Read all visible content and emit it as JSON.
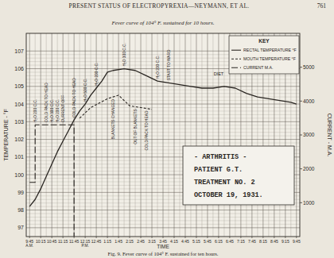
{
  "page": {
    "running_head": "PRESENT STATUS OF ELECTROPYREXIA—NEYMANN, ET AL.",
    "page_number": "761"
  },
  "chart_data": {
    "type": "line",
    "title": "Fever curve of 104° F. sustained for 10 hours.",
    "x_label": "TIME",
    "y_label": "TEMPERATURE - °F",
    "y2_label": "CURRENT - M.A.",
    "xlim": [
      9.6,
      21.9
    ],
    "xticks": [
      {
        "value": 9.75,
        "label": "9:45"
      },
      {
        "value": 10.25,
        "label": "10:15"
      },
      {
        "value": 10.75,
        "label": "10:45"
      },
      {
        "value": 11.25,
        "label": "11:15"
      },
      {
        "value": 11.75,
        "label": "11:45"
      },
      {
        "value": 12.25,
        "label": "12:15"
      },
      {
        "value": 12.75,
        "label": "12:45"
      },
      {
        "value": 13.25,
        "label": "1:15"
      },
      {
        "value": 13.75,
        "label": "1:45"
      },
      {
        "value": 14.25,
        "label": "2:15"
      },
      {
        "value": 14.75,
        "label": "2:45"
      },
      {
        "value": 15.25,
        "label": "3:15"
      },
      {
        "value": 15.75,
        "label": "3:45"
      },
      {
        "value": 16.25,
        "label": "4:15"
      },
      {
        "value": 16.75,
        "label": "4:45"
      },
      {
        "value": 17.25,
        "label": "5:15"
      },
      {
        "value": 17.75,
        "label": "5:45"
      },
      {
        "value": 18.25,
        "label": "6:15"
      },
      {
        "value": 18.75,
        "label": "6:45"
      },
      {
        "value": 19.25,
        "label": "7:15"
      },
      {
        "value": 19.75,
        "label": "7:45"
      },
      {
        "value": 20.25,
        "label": "8:15"
      },
      {
        "value": 20.75,
        "label": "8:45"
      },
      {
        "value": 21.25,
        "label": "9:15"
      },
      {
        "value": 21.75,
        "label": "9:45"
      }
    ],
    "period_labels": [
      {
        "x": 9.75,
        "text": "A.M."
      },
      {
        "x": 12.25,
        "text": "P.M."
      }
    ],
    "ylim": [
      96.5,
      108
    ],
    "yticks": [
      97,
      98,
      99,
      100,
      101,
      102,
      103,
      104,
      105,
      106,
      107
    ],
    "y2lim": [
      0,
      6000
    ],
    "y2ticks": [
      1000,
      2000,
      3000,
      4000,
      5000
    ],
    "grid": true,
    "legend": "upper right",
    "legend_title": "KEY",
    "series": [
      {
        "name": "RECTAL TEMPERATURE °F",
        "color": "#2a2622",
        "line_style": "solid",
        "x": [
          9.75,
          10.0,
          10.25,
          10.5,
          10.75,
          11.0,
          11.25,
          11.5,
          11.75,
          12.0,
          12.25,
          12.5,
          12.75,
          13.0,
          13.25,
          13.5,
          14.0,
          14.5,
          15.0,
          15.5,
          16.0,
          16.5,
          17.0,
          17.5,
          18.0,
          18.5,
          19.0,
          19.5,
          20.0,
          20.5,
          21.0,
          21.5,
          21.75
        ],
        "values": [
          98.2,
          98.6,
          99.2,
          99.9,
          100.6,
          101.3,
          101.9,
          102.5,
          103.1,
          103.6,
          104.0,
          104.5,
          104.9,
          105.3,
          105.8,
          105.9,
          106.0,
          105.9,
          105.6,
          105.3,
          105.2,
          105.1,
          105.0,
          104.9,
          104.9,
          105.0,
          104.9,
          104.6,
          104.4,
          104.3,
          104.2,
          104.1,
          104.0
        ]
      },
      {
        "name": "MOUTH TEMPERATURE °F",
        "color": "#2a2622",
        "line_style": "dashed",
        "x": [
          12.0,
          12.5,
          13.25,
          13.75,
          14.25,
          14.75,
          15.25
        ],
        "values": [
          103.2,
          103.8,
          104.3,
          104.5,
          103.9,
          103.8,
          103.7
        ]
      },
      {
        "name": "CURRENT M.A.",
        "color": "#2a2622",
        "line_style": "long-dashed",
        "axis": "y2",
        "x": [
          9.75,
          10.0,
          10.0,
          11.75,
          11.75
        ],
        "values": [
          1600,
          1600,
          3300,
          3300,
          0
        ]
      }
    ],
    "annotations": [
      {
        "x": 10.0,
        "text": "H₂O 200 C.C."
      },
      {
        "x": 10.5,
        "text": "COLD PACK TO HEAD"
      },
      {
        "x": 10.75,
        "text": "H₂O 300 C.C."
      },
      {
        "x": 11.0,
        "text": "H₂O 200 C.C."
      },
      {
        "x": 11.25,
        "text": "CURRENT OFF"
      },
      {
        "x": 11.75,
        "text": "COLD PACK TO HEAD"
      },
      {
        "x": 12.25,
        "text": "H₂O 500 C.C."
      },
      {
        "x": 12.75,
        "text": "H₂O 200 C.C."
      },
      {
        "x": 13.5,
        "text": "BLANKETS CHANGED"
      },
      {
        "x": 14.0,
        "text": "H₂O 300 C.C."
      },
      {
        "x": 14.5,
        "text": "OUT OF BLANKETS"
      },
      {
        "x": 15.0,
        "text": "COLD PACK TO HEAD"
      },
      {
        "x": 15.5,
        "text": "H₂O 200 C.C."
      },
      {
        "x": 16.0,
        "text": "START TO WARD"
      }
    ],
    "notes": [
      {
        "x": 18.25,
        "y": 105.6,
        "text": "DIET"
      }
    ]
  },
  "inset": {
    "lines": [
      "- ARTHRITIS -",
      "PATIENT G.T.",
      "TREATMENT NO. 2",
      "OCTOBER 19, 1931."
    ]
  },
  "caption": "Fig. 9. Fever curve of 104° F. sustained for ten hours."
}
